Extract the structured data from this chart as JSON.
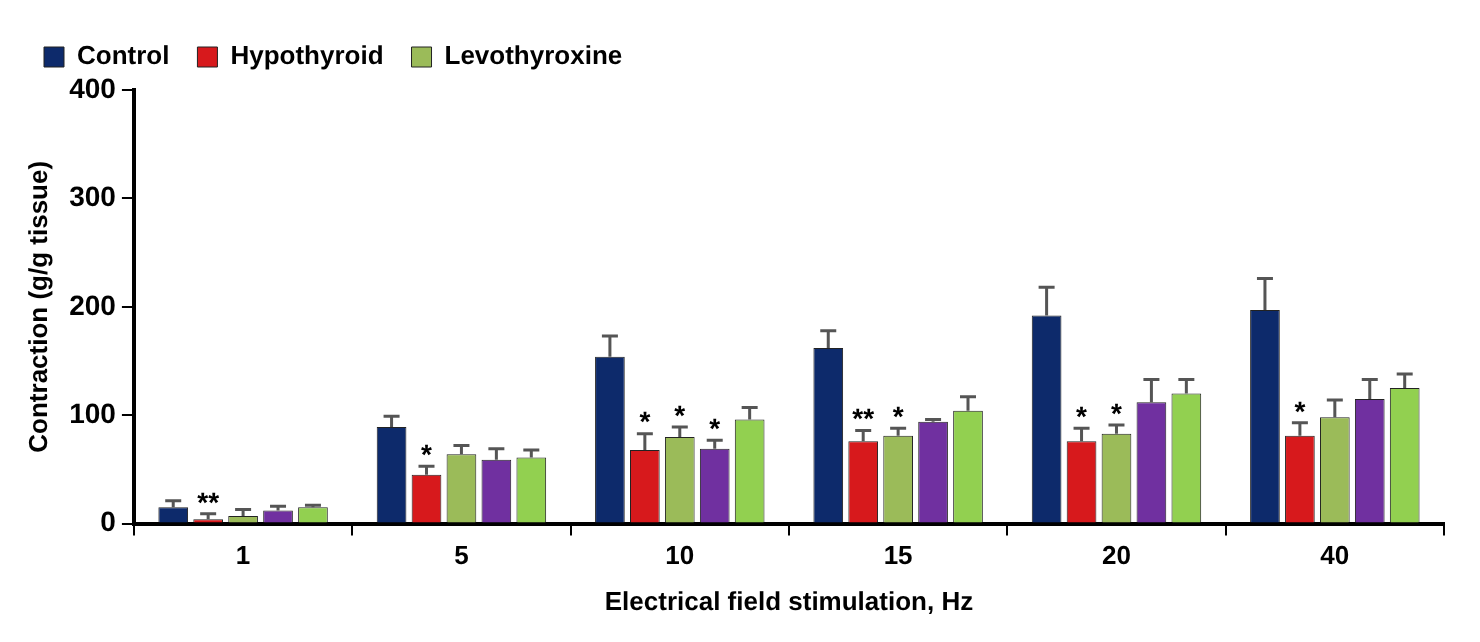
{
  "chart_data": {
    "type": "bar",
    "xlabel": "Electrical field stimulation, Hz",
    "ylabel": "Contraction (g/g tissue)",
    "categories": [
      "1",
      "5",
      "10",
      "15",
      "20",
      "40"
    ],
    "series": [
      {
        "name": "Control",
        "color": "#0d2a6b",
        "values": [
          15,
          89,
          154,
          162,
          192,
          197
        ],
        "errors": [
          6,
          10,
          19,
          16,
          26,
          29
        ]
      },
      {
        "name": "Hypothyroid",
        "color": "#d7191c",
        "values": [
          4,
          45,
          68,
          76,
          76,
          81
        ],
        "errors": [
          5,
          8,
          15,
          10,
          12,
          12
        ],
        "value_labels": [
          "**",
          "*",
          "*",
          "**",
          "*",
          "*"
        ]
      },
      {
        "name": "Levothyroxine",
        "color": "#9bbb59",
        "values": [
          7,
          64,
          80,
          81,
          83,
          98
        ],
        "errors": [
          6,
          8,
          9,
          7,
          8,
          16
        ],
        "value_labels": [
          null,
          null,
          "*",
          "*",
          "*",
          null
        ]
      },
      {
        "color": "#7030a0",
        "values": [
          12,
          59,
          69,
          94,
          112,
          115
        ],
        "errors": [
          4,
          10,
          8,
          2,
          21,
          18
        ],
        "value_labels": [
          null,
          null,
          "*",
          null,
          null,
          null
        ]
      },
      {
        "color": "#92d050",
        "values": [
          15,
          61,
          96,
          104,
          120,
          125
        ],
        "errors": [
          2,
          7,
          11,
          13,
          13,
          13
        ]
      }
    ],
    "ylim": [
      0,
      400
    ],
    "yticks": [
      0,
      100,
      200,
      300,
      400
    ],
    "grid": false,
    "legend": "top"
  }
}
